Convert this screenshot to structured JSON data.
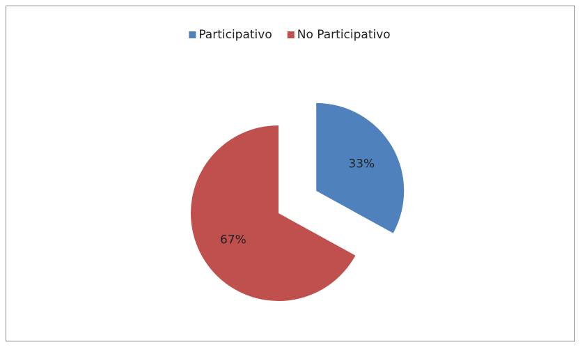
{
  "chart_data": {
    "type": "pie",
    "categories": [
      "Participativo",
      "No Participativo"
    ],
    "values": [
      33,
      67
    ],
    "value_labels": [
      "33%",
      "67%"
    ],
    "colors": [
      "#4f81bd",
      "#c0504d"
    ],
    "explode": [
      true,
      false
    ],
    "legend": "top"
  }
}
